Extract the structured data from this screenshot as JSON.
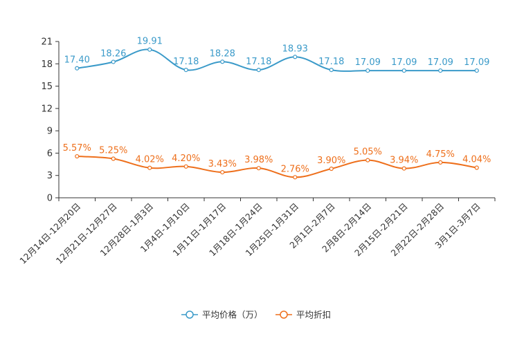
{
  "chart_data": {
    "type": "line",
    "title": "",
    "xlabel": "",
    "ylabel": "",
    "ylim": [
      0,
      21
    ],
    "yticks": [
      0,
      3,
      6,
      9,
      12,
      15,
      18,
      21
    ],
    "grid": false,
    "legend_position": "bottom-center",
    "categories": [
      "12月14日-12月20日",
      "12月21日-12月27日",
      "12月28日-1月3日",
      "1月4日-1月10日",
      "1月11日-1月17日",
      "1月18日-1月24日",
      "1月25日-1月31日",
      "2月1日-2月7日",
      "2月8日-2月14日",
      "2月15日-2月21日",
      "2月22日-2月28日",
      "3月1日-3月7日"
    ],
    "series": [
      {
        "name": "平均价格（万）",
        "color": "#3a9ac9",
        "values": [
          17.4,
          18.26,
          19.91,
          17.18,
          18.28,
          17.18,
          18.93,
          17.18,
          17.09,
          17.09,
          17.09,
          17.09
        ],
        "labels": [
          "17.40",
          "18.26",
          "19.91",
          "17.18",
          "18.28",
          "17.18",
          "18.93",
          "17.18",
          "17.09",
          "17.09",
          "17.09",
          "17.09"
        ]
      },
      {
        "name": "平均折扣",
        "color": "#ee6f1b",
        "values": [
          5.57,
          5.25,
          4.02,
          4.2,
          3.43,
          3.98,
          2.76,
          3.9,
          5.05,
          3.94,
          4.75,
          4.04
        ],
        "labels": [
          "5.57%",
          "5.25%",
          "4.02%",
          "4.20%",
          "3.43%",
          "3.98%",
          "2.76%",
          "3.90%",
          "5.05%",
          "3.94%",
          "4.75%",
          "4.04%"
        ]
      }
    ]
  }
}
